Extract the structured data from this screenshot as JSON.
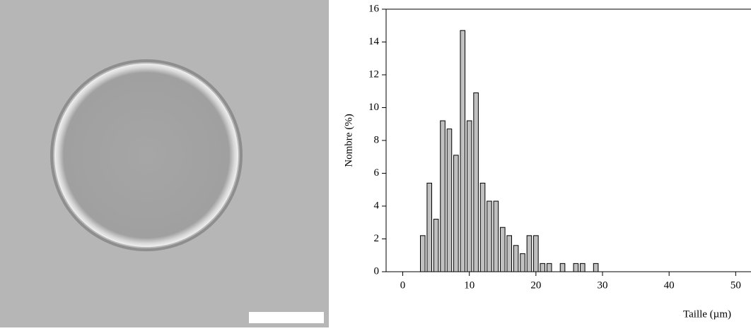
{
  "chart_data": {
    "type": "bar",
    "xlabel": "Taille (µm)",
    "ylabel": "Nombre (%)",
    "x": [
      3,
      4,
      5,
      6,
      7,
      8,
      9,
      10,
      11,
      12,
      13,
      14,
      15,
      16,
      17,
      18,
      19,
      20,
      21,
      22,
      24,
      26,
      27,
      29
    ],
    "values": [
      2.2,
      5.4,
      3.2,
      9.2,
      8.7,
      7.1,
      14.7,
      9.2,
      10.9,
      5.4,
      4.3,
      4.3,
      2.7,
      2.2,
      1.6,
      1.1,
      2.2,
      2.2,
      0.5,
      0.5,
      0.5,
      0.5,
      0.5,
      0.5
    ],
    "color": "#c0c0c0",
    "xlim": [
      -2.5,
      52.3
    ],
    "xticks": [
      0,
      10,
      20,
      30,
      40,
      50
    ],
    "ylim": [
      0,
      16
    ],
    "yticks": [
      0,
      2,
      4,
      6,
      8,
      10,
      12,
      14,
      16
    ]
  }
}
